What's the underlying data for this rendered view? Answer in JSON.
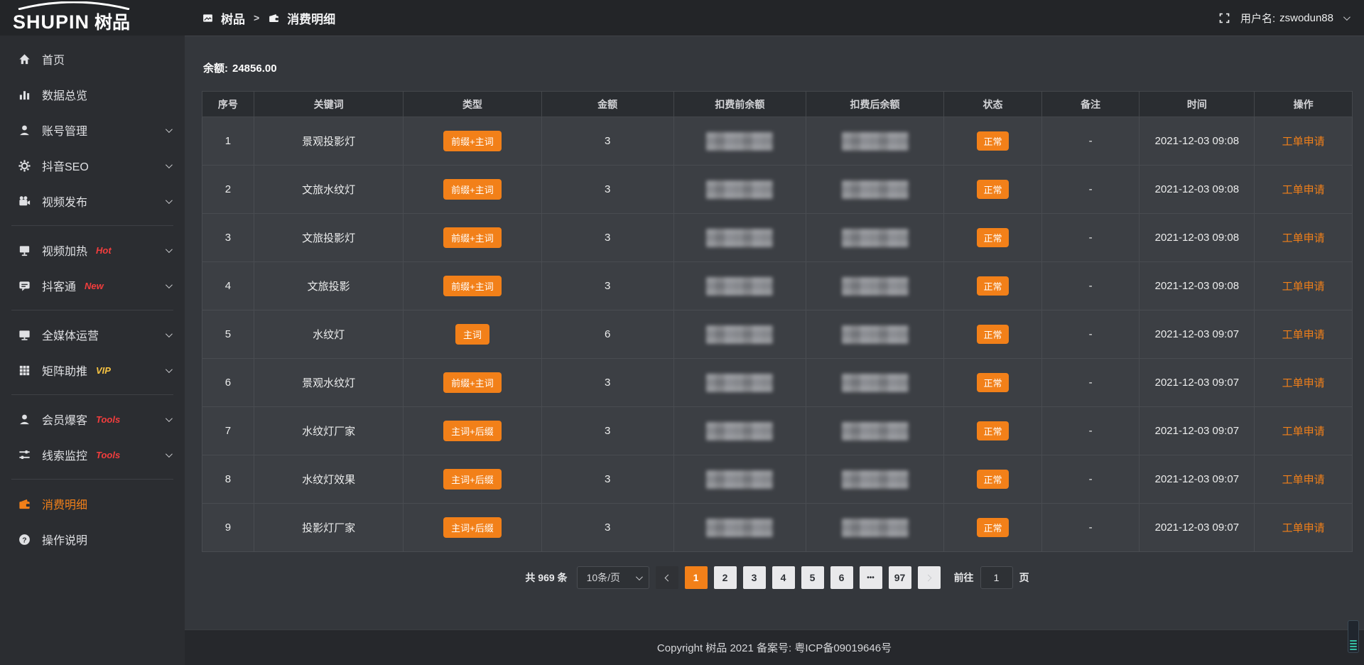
{
  "brand": {
    "logo_en": "SHUPIN",
    "logo_cn": "树品"
  },
  "topbar": {
    "breadcrumb": [
      {
        "label": "树品",
        "icon": "image-icon"
      },
      {
        "label": "消费明细",
        "icon": "wallet-icon"
      }
    ],
    "breadcrumb_separator": ">",
    "fullscreen_icon": "fullscreen-icon",
    "username_label": "用户名:",
    "username": "zswodun88"
  },
  "sidebar": {
    "items": [
      {
        "icon": "home-icon",
        "label": "首页"
      },
      {
        "icon": "bar-chart-icon",
        "label": "数据总览"
      },
      {
        "icon": "user-icon",
        "label": "账号管理",
        "chevron": true
      },
      {
        "icon": "gear-icon",
        "label": "抖音SEO",
        "chevron": true
      },
      {
        "icon": "video-camera-icon",
        "label": "视频发布",
        "chevron": true
      },
      {
        "divider": true
      },
      {
        "icon": "projector-icon",
        "label": "视频加热",
        "tag": "Hot",
        "tag_color": "red",
        "chevron": true
      },
      {
        "icon": "chat-icon",
        "label": "抖客通",
        "tag": "New",
        "tag_color": "red",
        "chevron": true
      },
      {
        "divider": true
      },
      {
        "icon": "monitor-icon",
        "label": "全媒体运营",
        "chevron": true
      },
      {
        "icon": "grid-icon",
        "label": "矩阵助推",
        "tag": "VIP",
        "tag_color": "gold",
        "chevron": true
      },
      {
        "divider": true
      },
      {
        "icon": "user-icon",
        "label": "会员爆客",
        "tag": "Tools",
        "tag_color": "red",
        "chevron": true
      },
      {
        "icon": "sliders-icon",
        "label": "线索监控",
        "tag": "Tools",
        "tag_color": "red",
        "chevron": true
      },
      {
        "divider": true
      },
      {
        "icon": "wallet-icon",
        "label": "消费明细",
        "active": true
      },
      {
        "icon": "question-icon",
        "label": "操作说明"
      }
    ]
  },
  "balance": {
    "label": "余额:",
    "value": "24856.00"
  },
  "table": {
    "headers": [
      "序号",
      "关键词",
      "类型",
      "金额",
      "扣费前余额",
      "扣费后余额",
      "状态",
      "备注",
      "时间",
      "操作"
    ],
    "col_widths": [
      "4.5%",
      "13%",
      "12%",
      "11.5%",
      "11.5%",
      "12%",
      "8.5%",
      "8.5%",
      "10%",
      "8.5%"
    ],
    "rows": [
      {
        "index": "1",
        "keyword": "景观投影灯",
        "type": "前缀+主词",
        "amount": "3",
        "balance_before": "blurred",
        "balance_after": "blurred",
        "status": "正常",
        "remark": "-",
        "time": "2021-12-03 09:08",
        "action": "工单申请"
      },
      {
        "index": "2",
        "keyword": "文旅水纹灯",
        "type": "前缀+主词",
        "amount": "3",
        "balance_before": "blurred",
        "balance_after": "blurred",
        "status": "正常",
        "remark": "-",
        "time": "2021-12-03 09:08",
        "action": "工单申请"
      },
      {
        "index": "3",
        "keyword": "文旅投影灯",
        "type": "前缀+主词",
        "amount": "3",
        "balance_before": "blurred",
        "balance_after": "blurred",
        "status": "正常",
        "remark": "-",
        "time": "2021-12-03 09:08",
        "action": "工单申请"
      },
      {
        "index": "4",
        "keyword": "文旅投影",
        "type": "前缀+主词",
        "amount": "3",
        "balance_before": "blurred",
        "balance_after": "blurred",
        "status": "正常",
        "remark": "-",
        "time": "2021-12-03 09:08",
        "action": "工单申请"
      },
      {
        "index": "5",
        "keyword": "水纹灯",
        "type": "主词",
        "amount": "6",
        "balance_before": "blurred",
        "balance_after": "blurred",
        "status": "正常",
        "remark": "-",
        "time": "2021-12-03 09:07",
        "action": "工单申请"
      },
      {
        "index": "6",
        "keyword": "景观水纹灯",
        "type": "前缀+主词",
        "amount": "3",
        "balance_before": "blurred",
        "balance_after": "blurred",
        "status": "正常",
        "remark": "-",
        "time": "2021-12-03 09:07",
        "action": "工单申请"
      },
      {
        "index": "7",
        "keyword": "水纹灯厂家",
        "type": "主词+后缀",
        "amount": "3",
        "balance_before": "blurred",
        "balance_after": "blurred",
        "status": "正常",
        "remark": "-",
        "time": "2021-12-03 09:07",
        "action": "工单申请"
      },
      {
        "index": "8",
        "keyword": "水纹灯效果",
        "type": "主词+后缀",
        "amount": "3",
        "balance_before": "blurred",
        "balance_after": "blurred",
        "status": "正常",
        "remark": "-",
        "time": "2021-12-03 09:07",
        "action": "工单申请"
      },
      {
        "index": "9",
        "keyword": "投影灯厂家",
        "type": "主词+后缀",
        "amount": "3",
        "balance_before": "blurred",
        "balance_after": "blurred",
        "status": "正常",
        "remark": "-",
        "time": "2021-12-03 09:07",
        "action": "工单申请"
      }
    ]
  },
  "pagination": {
    "total_label": "共 969 条",
    "per_page": "10条/页",
    "pages": [
      "1",
      "2",
      "3",
      "4",
      "5",
      "6",
      "•••",
      "97"
    ],
    "active_page": "1",
    "goto_label": "前往",
    "goto_value": "1",
    "goto_unit": "页"
  },
  "footer": {
    "copyright": "Copyright 树品 2021 备案号: 粤ICP备09019646号"
  },
  "colors": {
    "accent": "#f28019",
    "hot_tag": "#f23d3d",
    "vip_tag": "#f5c242",
    "status_badge": "#f28019"
  }
}
